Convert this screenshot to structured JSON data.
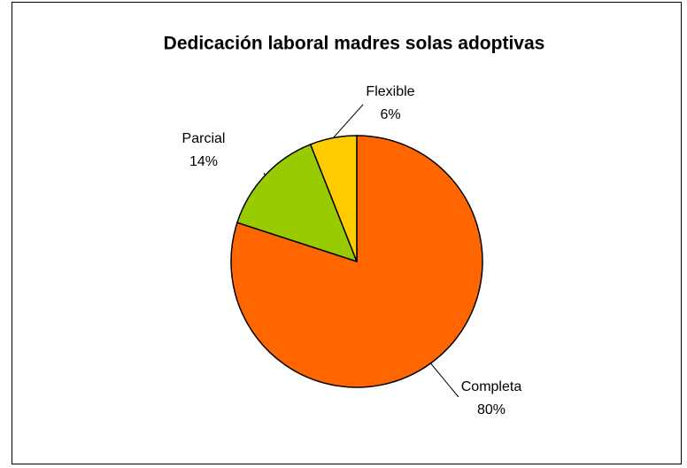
{
  "chart_data": {
    "type": "pie",
    "title": "Dedicación laboral madres solas adoptivas",
    "categories": [
      "Completa",
      "Parcial",
      "Flexible"
    ],
    "values": [
      80,
      14,
      6
    ],
    "value_labels": [
      "80%",
      "14%",
      "6%"
    ],
    "colors": [
      "#FF6600",
      "#99CC00",
      "#FFCC00"
    ]
  }
}
